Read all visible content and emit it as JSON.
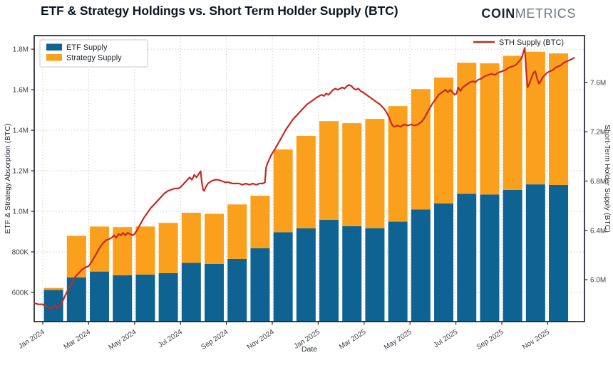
{
  "header": {
    "title": "ETF & Strategy Holdings vs. Short Term Holder Supply (BTC)",
    "logo": {
      "bold": "COIN",
      "light": "METRICS"
    }
  },
  "chart_data": {
    "type": "bar",
    "subtype": "stacked-bars-with-line-overlay",
    "values_unit": "thousand BTC (bars, left axis) / million BTC (line, right axis)",
    "categories": [
      "Jan 2024",
      "Feb 2024",
      "Mar 2024",
      "Apr 2024",
      "May 2024",
      "Jun 2024",
      "Jul 2024",
      "Aug 2024",
      "Sep 2024",
      "Oct 2024",
      "Nov 2024",
      "Dec 2024",
      "Jan 2025",
      "Feb 2025",
      "Mar 2025",
      "Apr 2025",
      "May 2025",
      "Jun 2025",
      "Jul 2025",
      "Aug 2025",
      "Sep 2025",
      "Oct 2025",
      "Nov 2025"
    ],
    "series": [
      {
        "name": "ETF Supply",
        "type": "bar",
        "stack": true,
        "color": "#0e6392",
        "values": [
          612,
          674,
          703,
          685,
          688,
          695,
          746,
          741,
          765,
          818,
          897,
          916,
          958,
          927,
          917,
          949,
          1009,
          1039,
          1086,
          1083,
          1106,
          1133,
          1130
        ]
      },
      {
        "name": "Strategy Supply",
        "type": "bar",
        "stack": true,
        "color": "#fba01c",
        "values": [
          10,
          205,
          222,
          237,
          237,
          248,
          247,
          247,
          269,
          259,
          408,
          456,
          487,
          508,
          539,
          570,
          594,
          621,
          647,
          647,
          661,
          654,
          649
        ]
      },
      {
        "name": "STH Supply (BTC)",
        "type": "line",
        "axis": "right",
        "color": "#c62a21",
        "points": [
          [
            -0.37,
            5.81
          ],
          [
            -0.2,
            5.8
          ],
          [
            0,
            5.8
          ],
          [
            0.15,
            5.78
          ],
          [
            0.3,
            5.77
          ],
          [
            0.45,
            5.77
          ],
          [
            0.55,
            5.79
          ],
          [
            0.65,
            5.77
          ],
          [
            0.8,
            5.8
          ],
          [
            0.95,
            5.86
          ],
          [
            1.1,
            5.92
          ],
          [
            1.25,
            5.97
          ],
          [
            1.4,
            6.02
          ],
          [
            1.55,
            6.05
          ],
          [
            1.7,
            6.08
          ],
          [
            1.85,
            6.1
          ],
          [
            2,
            6.11
          ],
          [
            2.15,
            6.15
          ],
          [
            2.3,
            6.2
          ],
          [
            2.45,
            6.25
          ],
          [
            2.6,
            6.29
          ],
          [
            2.75,
            6.32
          ],
          [
            2.9,
            6.33
          ],
          [
            3,
            6.34
          ],
          [
            3.1,
            6.36
          ],
          [
            3.2,
            6.34
          ],
          [
            3.3,
            6.37
          ],
          [
            3.4,
            6.36
          ],
          [
            3.5,
            6.38
          ],
          [
            3.6,
            6.36
          ],
          [
            3.7,
            6.38
          ],
          [
            3.8,
            6.37
          ],
          [
            3.9,
            6.36
          ],
          [
            4,
            6.37
          ],
          [
            4.1,
            6.4
          ],
          [
            4.25,
            6.45
          ],
          [
            4.4,
            6.5
          ],
          [
            4.55,
            6.54
          ],
          [
            4.7,
            6.58
          ],
          [
            4.85,
            6.61
          ],
          [
            5,
            6.64
          ],
          [
            5.15,
            6.67
          ],
          [
            5.3,
            6.7
          ],
          [
            5.45,
            6.72
          ],
          [
            5.6,
            6.73
          ],
          [
            5.75,
            6.74
          ],
          [
            5.9,
            6.74
          ],
          [
            6,
            6.75
          ],
          [
            6.1,
            6.77
          ],
          [
            6.2,
            6.79
          ],
          [
            6.3,
            6.81
          ],
          [
            6.4,
            6.83
          ],
          [
            6.5,
            6.81
          ],
          [
            6.6,
            6.85
          ],
          [
            6.7,
            6.83
          ],
          [
            6.8,
            6.86
          ],
          [
            6.88,
            6.88
          ],
          [
            6.93,
            6.79
          ],
          [
            6.98,
            6.73
          ],
          [
            7.03,
            6.72
          ],
          [
            7.1,
            6.75
          ],
          [
            7.2,
            6.78
          ],
          [
            7.35,
            6.8
          ],
          [
            7.5,
            6.81
          ],
          [
            7.65,
            6.81
          ],
          [
            7.8,
            6.8
          ],
          [
            7.95,
            6.79
          ],
          [
            8.1,
            6.79
          ],
          [
            8.25,
            6.78
          ],
          [
            8.4,
            6.78
          ],
          [
            8.55,
            6.78
          ],
          [
            8.7,
            6.77
          ],
          [
            8.85,
            6.78
          ],
          [
            9,
            6.77
          ],
          [
            9.15,
            6.78
          ],
          [
            9.3,
            6.77
          ],
          [
            9.45,
            6.78
          ],
          [
            9.6,
            6.78
          ],
          [
            9.68,
            6.79
          ],
          [
            9.73,
            6.91
          ],
          [
            9.8,
            6.95
          ],
          [
            9.88,
            6.98
          ],
          [
            9.95,
            7.01
          ],
          [
            10.05,
            7.04
          ],
          [
            10.15,
            7.07
          ],
          [
            10.3,
            7.12
          ],
          [
            10.45,
            7.17
          ],
          [
            10.6,
            7.22
          ],
          [
            10.75,
            7.26
          ],
          [
            10.9,
            7.3
          ],
          [
            11.05,
            7.33
          ],
          [
            11.2,
            7.36
          ],
          [
            11.35,
            7.39
          ],
          [
            11.5,
            7.42
          ],
          [
            11.65,
            7.44
          ],
          [
            11.8,
            7.46
          ],
          [
            11.95,
            7.48
          ],
          [
            12.05,
            7.49
          ],
          [
            12.15,
            7.5
          ],
          [
            12.25,
            7.49
          ],
          [
            12.35,
            7.51
          ],
          [
            12.45,
            7.5
          ],
          [
            12.55,
            7.52
          ],
          [
            12.65,
            7.54
          ],
          [
            12.75,
            7.55
          ],
          [
            12.85,
            7.54
          ],
          [
            12.95,
            7.55
          ],
          [
            13.05,
            7.56
          ],
          [
            13.15,
            7.55
          ],
          [
            13.25,
            7.57
          ],
          [
            13.35,
            7.58
          ],
          [
            13.45,
            7.57
          ],
          [
            13.55,
            7.55
          ],
          [
            13.65,
            7.54
          ],
          [
            13.75,
            7.55
          ],
          [
            13.85,
            7.53
          ],
          [
            13.95,
            7.52
          ],
          [
            14.1,
            7.5
          ],
          [
            14.25,
            7.48
          ],
          [
            14.4,
            7.46
          ],
          [
            14.55,
            7.44
          ],
          [
            14.7,
            7.42
          ],
          [
            14.8,
            7.4
          ],
          [
            14.9,
            7.38
          ],
          [
            15,
            7.35
          ],
          [
            15.08,
            7.32
          ],
          [
            15.16,
            7.28
          ],
          [
            15.24,
            7.25
          ],
          [
            15.32,
            7.24
          ],
          [
            15.45,
            7.25
          ],
          [
            15.6,
            7.24
          ],
          [
            15.75,
            7.26
          ],
          [
            15.9,
            7.25
          ],
          [
            16.05,
            7.26
          ],
          [
            16.2,
            7.25
          ],
          [
            16.35,
            7.26
          ],
          [
            16.5,
            7.28
          ],
          [
            16.62,
            7.31
          ],
          [
            16.74,
            7.35
          ],
          [
            16.86,
            7.39
          ],
          [
            16.98,
            7.43
          ],
          [
            17.1,
            7.46
          ],
          [
            17.25,
            7.5
          ],
          [
            17.4,
            7.52
          ],
          [
            17.55,
            7.54
          ],
          [
            17.65,
            7.52
          ],
          [
            17.75,
            7.54
          ],
          [
            17.85,
            7.52
          ],
          [
            17.95,
            7.5
          ],
          [
            18.03,
            7.51
          ],
          [
            18.1,
            7.56
          ],
          [
            18.2,
            7.53
          ],
          [
            18.3,
            7.56
          ],
          [
            18.45,
            7.58
          ],
          [
            18.6,
            7.6
          ],
          [
            18.75,
            7.61
          ],
          [
            18.85,
            7.6
          ],
          [
            18.95,
            7.62
          ],
          [
            19.1,
            7.63
          ],
          [
            19.25,
            7.65
          ],
          [
            19.4,
            7.66
          ],
          [
            19.55,
            7.67
          ],
          [
            19.7,
            7.66
          ],
          [
            19.85,
            7.68
          ],
          [
            20,
            7.69
          ],
          [
            20.15,
            7.7
          ],
          [
            20.3,
            7.72
          ],
          [
            20.45,
            7.73
          ],
          [
            20.6,
            7.74
          ],
          [
            20.75,
            7.77
          ],
          [
            20.87,
            7.8
          ],
          [
            20.95,
            7.85
          ],
          [
            21,
            7.88
          ],
          [
            21.06,
            7.7
          ],
          [
            21.12,
            7.56
          ],
          [
            21.18,
            7.58
          ],
          [
            21.24,
            7.61
          ],
          [
            21.3,
            7.64
          ],
          [
            21.38,
            7.68
          ],
          [
            21.46,
            7.69
          ],
          [
            21.54,
            7.63
          ],
          [
            21.62,
            7.59
          ],
          [
            21.7,
            7.61
          ],
          [
            21.78,
            7.64
          ],
          [
            21.88,
            7.66
          ],
          [
            21.98,
            7.68
          ],
          [
            22.1,
            7.69
          ],
          [
            22.22,
            7.7
          ],
          [
            22.34,
            7.72
          ],
          [
            22.46,
            7.73
          ],
          [
            22.58,
            7.74
          ],
          [
            22.7,
            7.76
          ],
          [
            22.82,
            7.77
          ],
          [
            22.94,
            7.78
          ],
          [
            23.06,
            7.79
          ],
          [
            23.15,
            7.8
          ]
        ]
      }
    ],
    "axes": {
      "x": {
        "label": "Date",
        "tick_labels": [
          "Jan 2024",
          "Mar 2024",
          "May 2024",
          "Jul 2024",
          "Sep 2024",
          "Nov 2024",
          "Jan 2025",
          "Mar 2025",
          "May 2025",
          "Jul 2025",
          "Sep 2025",
          "Nov 2025"
        ],
        "tick_month_indices": [
          0,
          2,
          4,
          6,
          8,
          10,
          12,
          14,
          16,
          18,
          20,
          22
        ]
      },
      "y_left": {
        "label": "ETF & Strategy Absorption (BTC)",
        "tick_labels": [
          "600K",
          "800K",
          "1.0M",
          "1.2M",
          "1.4M",
          "1.6M",
          "1.8M"
        ],
        "tick_values": [
          600,
          800,
          1000,
          1200,
          1400,
          1600,
          1800
        ],
        "range": [
          456,
          1867
        ]
      },
      "y_right": {
        "label": "Short-Term Holder Supply (BTC)",
        "tick_labels": [
          "6.0M",
          "6.4M",
          "6.8M",
          "7.2M",
          "7.6M"
        ],
        "tick_values": [
          6.0,
          6.4,
          6.8,
          7.2,
          7.6
        ],
        "range": [
          5.66,
          7.98
        ]
      },
      "grid": "dotted"
    },
    "legend_position": {
      "bars": "top-left-boxed",
      "line": "top-right"
    }
  }
}
